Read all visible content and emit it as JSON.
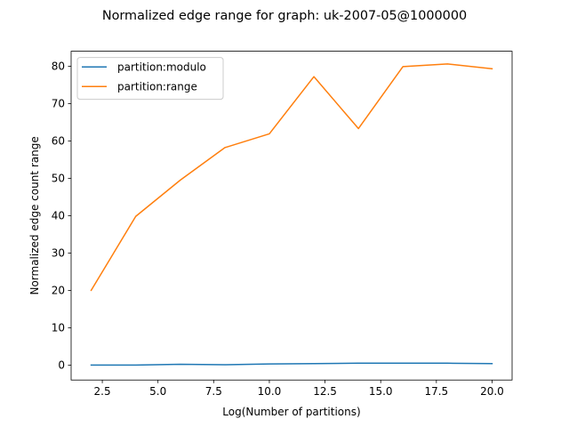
{
  "chart_data": {
    "type": "line",
    "title": "Normalized edge range for graph: uk-2007-05@1000000",
    "xlabel": "Log(Number of partitions)",
    "ylabel": "Normalized edge count range",
    "xlim": [
      1.1,
      20.9
    ],
    "ylim": [
      -4.0,
      84.0
    ],
    "xticks": [
      2.5,
      5.0,
      7.5,
      10.0,
      12.5,
      15.0,
      17.5,
      20.0
    ],
    "xtick_labels": [
      "2.5",
      "5.0",
      "7.5",
      "10.0",
      "12.5",
      "15.0",
      "17.5",
      "20.0"
    ],
    "yticks": [
      0,
      10,
      20,
      30,
      40,
      50,
      60,
      70,
      80
    ],
    "ytick_labels": [
      "0",
      "10",
      "20",
      "30",
      "40",
      "50",
      "60",
      "70",
      "80"
    ],
    "grid": false,
    "legend_position": "upper-left",
    "x": [
      2,
      4,
      6,
      8,
      10,
      12,
      14,
      16,
      18,
      20
    ],
    "series": [
      {
        "name": "partition:modulo",
        "color": "#1f77b4",
        "values": [
          0.0,
          0.0,
          0.2,
          0.1,
          0.3,
          0.4,
          0.5,
          0.5,
          0.5,
          0.4
        ]
      },
      {
        "name": "partition:range",
        "color": "#ff7f0e",
        "values": [
          20.0,
          39.8,
          49.5,
          58.2,
          61.9,
          77.2,
          63.3,
          79.9,
          80.6,
          79.3
        ]
      }
    ]
  }
}
